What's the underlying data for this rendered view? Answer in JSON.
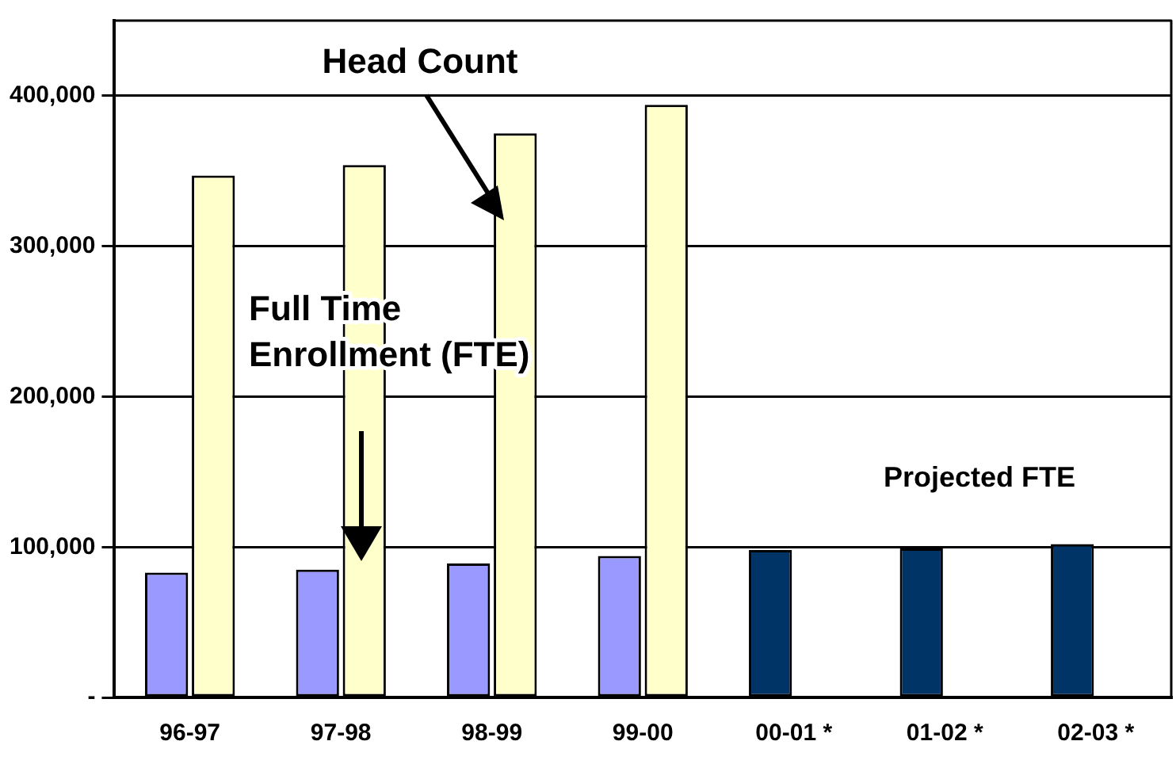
{
  "chart_data": {
    "type": "bar",
    "categories": [
      "96-97",
      "97-98",
      "98-99",
      "99-00",
      "00-01 *",
      "01-02 *",
      "02-03 *"
    ],
    "series": [
      {
        "colors": [
          "#9999ff",
          "#9999ff",
          "#9999ff",
          "#9999ff",
          "#003366",
          "#003366",
          "#003366"
        ],
        "values": [
          83000,
          85000,
          89000,
          94000,
          98000,
          99000,
          102000
        ]
      },
      {
        "color": "#ffffcc",
        "values": [
          347000,
          354000,
          375000,
          394000,
          null,
          null,
          null
        ]
      }
    ],
    "ylim": [
      0,
      450000
    ],
    "yticks": [
      {
        "value": 0,
        "label": "-"
      },
      {
        "value": 100000,
        "label": "100,000"
      },
      {
        "value": 200000,
        "label": "200,000"
      },
      {
        "value": 300000,
        "label": "300,000"
      },
      {
        "value": 400000,
        "label": "400,000"
      }
    ],
    "grid": "y",
    "legend": false,
    "annotations": [
      "Head Count",
      "Full Time\nEnrollment (FTE)",
      "Projected FTE"
    ]
  }
}
